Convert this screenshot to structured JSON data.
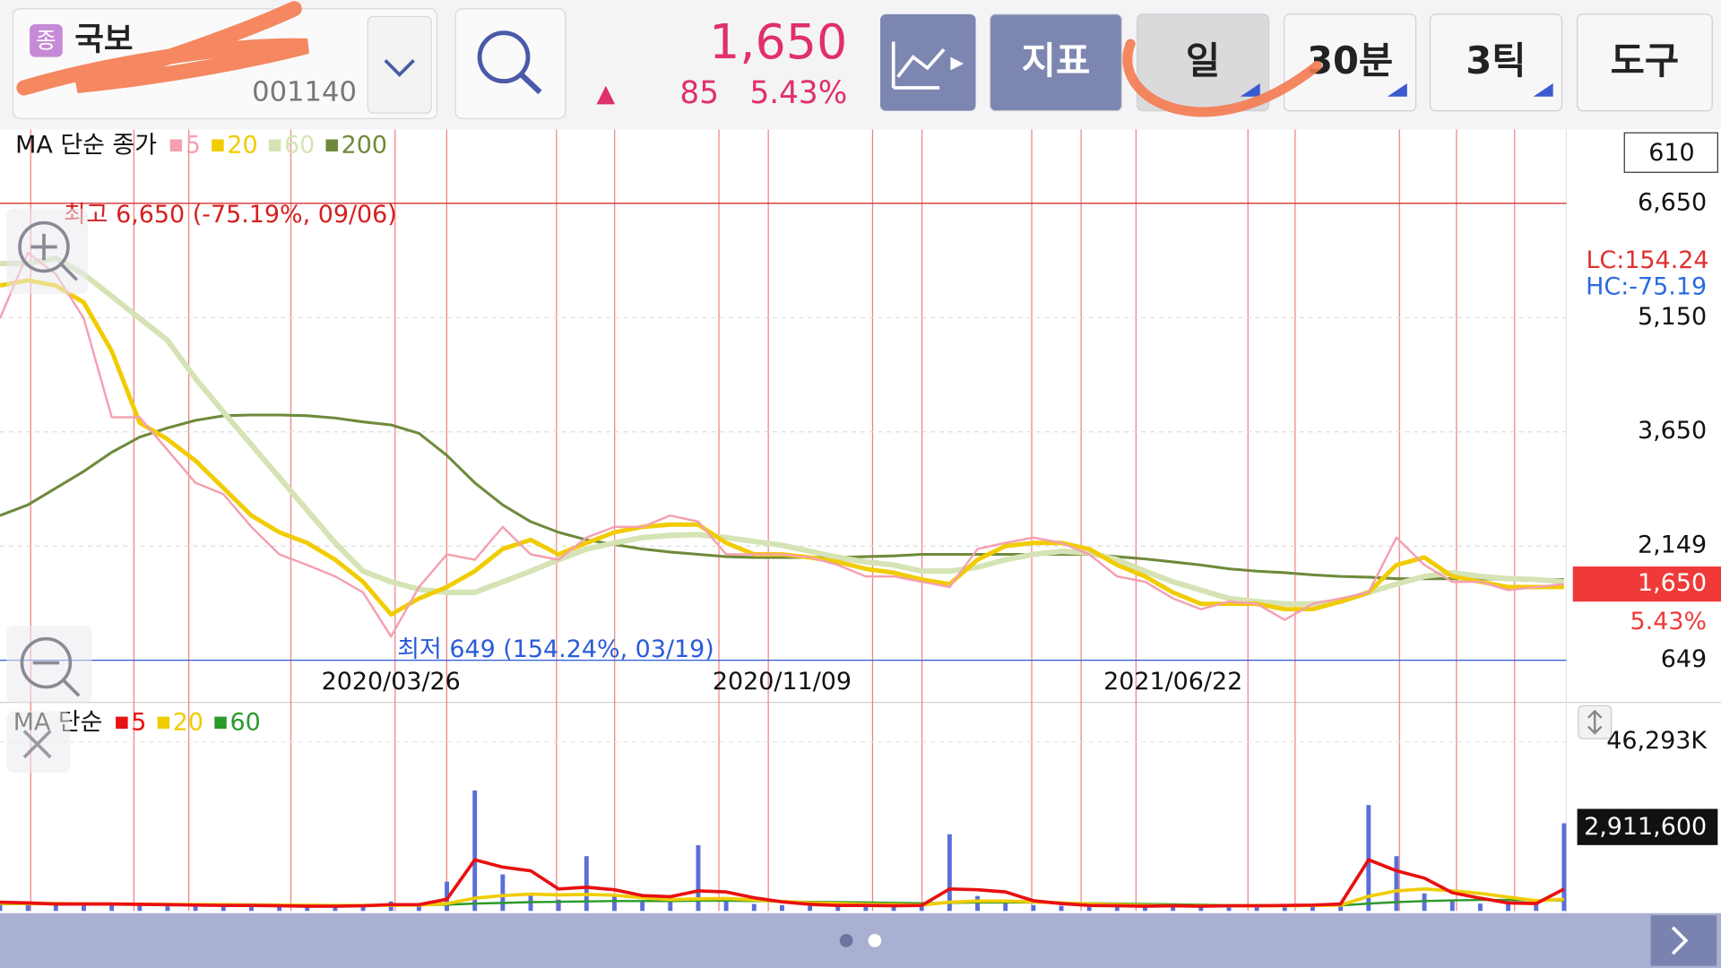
{
  "header": {
    "badge": "종",
    "name": "국보",
    "code": "001140",
    "price": "1,650",
    "change_arrow": "▲",
    "change": "85",
    "change_pct": "5.43%"
  },
  "toolbar": {
    "buttons": [
      "지표",
      "일",
      "30분",
      "3틱",
      "도구"
    ]
  },
  "side_labels": {
    "box": "610",
    "lc": "LC:154.24",
    "hc": "HC:-75.19"
  },
  "chart_data": [
    {
      "type": "line",
      "legend_title": "MA 단순 종가",
      "categories": [
        null,
        null,
        null,
        null,
        null,
        null,
        null,
        null,
        null,
        null,
        null,
        null,
        null,
        null,
        "2020/03/26",
        null,
        null,
        null,
        null,
        null,
        null,
        null,
        null,
        null,
        null,
        null,
        null,
        null,
        "2020/11/09",
        null,
        null,
        null,
        null,
        null,
        null,
        null,
        null,
        null,
        null,
        null,
        null,
        null,
        "2021/06/22",
        null,
        null,
        null,
        null,
        null,
        null,
        null,
        null,
        null,
        null,
        null,
        null,
        null,
        null
      ],
      "series": [
        {
          "name": "5",
          "color": "#f4a0b0",
          "values": [
            5140,
            6000,
            5720,
            5140,
            3840,
            3840,
            3410,
            2980,
            2830,
            2400,
            2040,
            1900,
            1750,
            1540,
            960,
            1610,
            2040,
            1970,
            2400,
            2040,
            1970,
            2260,
            2400,
            2400,
            2550,
            2470,
            2040,
            2040,
            2040,
            2000,
            1900,
            1750,
            1750,
            1680,
            1610,
            2110,
            2190,
            2260,
            2190,
            2040,
            1750,
            1680,
            1460,
            1320,
            1420,
            1390,
            1180,
            1390,
            1460,
            1540,
            2260,
            1900,
            1680,
            1680,
            1570,
            1610,
            1650
          ]
        },
        {
          "name": "20",
          "color": "#f0cc00",
          "values": [
            5570,
            5640,
            5570,
            5350,
            4710,
            3770,
            3550,
            3270,
            2910,
            2550,
            2330,
            2190,
            1970,
            1680,
            1250,
            1460,
            1610,
            1820,
            2110,
            2230,
            2040,
            2190,
            2330,
            2400,
            2430,
            2430,
            2190,
            2040,
            2040,
            2000,
            1940,
            1850,
            1800,
            1710,
            1650,
            1970,
            2150,
            2190,
            2190,
            2110,
            1900,
            1750,
            1540,
            1390,
            1390,
            1390,
            1320,
            1320,
            1420,
            1540,
            1900,
            2000,
            1750,
            1680,
            1610,
            1610,
            1610
          ]
        },
        {
          "name": "60",
          "color": "#d5e3b5",
          "values": [
            5860,
            5860,
            5930,
            5720,
            5430,
            5140,
            4850,
            4350,
            3910,
            3480,
            3050,
            2620,
            2190,
            1820,
            1680,
            1580,
            1540,
            1540,
            1680,
            1820,
            1970,
            2110,
            2190,
            2260,
            2290,
            2300,
            2260,
            2210,
            2160,
            2080,
            2000,
            1940,
            1900,
            1820,
            1820,
            1870,
            1970,
            2040,
            2080,
            2060,
            1970,
            1820,
            1680,
            1570,
            1460,
            1420,
            1390,
            1390,
            1420,
            1540,
            1650,
            1750,
            1800,
            1750,
            1720,
            1710,
            1680
          ]
        },
        {
          "name": "200",
          "color": "#6e8a3a",
          "values": [
            2550,
            2690,
            2910,
            3130,
            3380,
            3580,
            3700,
            3800,
            3860,
            3870,
            3870,
            3860,
            3830,
            3780,
            3740,
            3630,
            3340,
            2980,
            2690,
            2470,
            2330,
            2230,
            2170,
            2110,
            2070,
            2040,
            2010,
            2000,
            2000,
            2000,
            2000,
            2010,
            2020,
            2040,
            2040,
            2040,
            2040,
            2040,
            2040,
            2040,
            2010,
            1980,
            1940,
            1900,
            1850,
            1820,
            1800,
            1770,
            1750,
            1740,
            1720,
            1720,
            1720,
            1720,
            1710,
            1710,
            1710
          ]
        }
      ],
      "ylim": [
        600,
        7620
      ],
      "yticks": [
        {
          "value": 6650,
          "label": "6,650"
        },
        {
          "value": 5150,
          "label": "5,150"
        },
        {
          "value": 3650,
          "label": "3,650"
        },
        {
          "value": 2149,
          "label": "2,149"
        },
        649
      ],
      "annotations": [
        {
          "text": "최고 6,650 (-75.19%, 09/06)",
          "value": 6650,
          "color": "#d42020"
        },
        {
          "text": "최저 649 (154.24%, 03/19)",
          "value": 649,
          "color": "#2a5bd7"
        }
      ],
      "current": {
        "value": 1650,
        "label": "1,650",
        "change": "5.43%",
        "color": "#f03a3a"
      }
    },
    {
      "type": "bar",
      "legend_title": "MA 단순",
      "color": "#5a6fd8",
      "values": [
        2100000,
        1800000,
        1500000,
        2400000,
        1900000,
        1600000,
        1400000,
        1700000,
        1300000,
        1500000,
        1200000,
        1100000,
        1400000,
        1800000,
        2600000,
        1500000,
        8000000,
        33000000,
        10000000,
        4200000,
        3100000,
        15000000,
        4400000,
        2600000,
        3900000,
        18000000,
        3300000,
        1900000,
        1600000,
        1400000,
        1200000,
        1300000,
        1500000,
        1700000,
        21000000,
        4100000,
        2300000,
        1600000,
        1400000,
        1200000,
        1100000,
        1300000,
        1500000,
        1200000,
        1400000,
        1600000,
        1300000,
        1900000,
        2200000,
        29000000,
        15000000,
        4800000,
        2700000,
        2000000,
        1800000,
        2200000,
        24000000
      ],
      "series": [
        {
          "name": "5",
          "color": "#e81010",
          "values": [
            2400000,
            2200000,
            1900000,
            1900000,
            1900000,
            1800000,
            1700000,
            1600000,
            1500000,
            1500000,
            1400000,
            1300000,
            1300000,
            1400000,
            1700000,
            1700000,
            3200000,
            14000000,
            12000000,
            11000000,
            6000000,
            6500000,
            5800000,
            4200000,
            3900000,
            5500000,
            5200000,
            3600000,
            2500000,
            1800000,
            1500000,
            1500000,
            1400000,
            1500000,
            6000000,
            5800000,
            5200000,
            2800000,
            2000000,
            1500000,
            1400000,
            1300000,
            1400000,
            1300000,
            1400000,
            1400000,
            1500000,
            1600000,
            1900000,
            14000000,
            11000000,
            9000000,
            5000000,
            3500000,
            2200000,
            2000000,
            6000000
          ]
        },
        {
          "name": "20",
          "color": "#f0cc00",
          "values": [
            2100000,
            2050000,
            2000000,
            1950000,
            1900000,
            1850000,
            1800000,
            1750000,
            1700000,
            1650000,
            1600000,
            1550000,
            1500000,
            1500000,
            1550000,
            1600000,
            2000000,
            3500000,
            4200000,
            4600000,
            4400000,
            4500000,
            4300000,
            3600000,
            3100000,
            3300000,
            3400000,
            3000000,
            2600000,
            2200000,
            2000000,
            1800000,
            1700000,
            1600000,
            2400000,
            2700000,
            2700000,
            2500000,
            2200000,
            1900000,
            1700000,
            1500000,
            1400000,
            1400000,
            1400000,
            1400000,
            1400000,
            1500000,
            1600000,
            4000000,
            5500000,
            6000000,
            5500000,
            4800000,
            3800000,
            2800000,
            3200000
          ]
        },
        {
          "name": "60",
          "color": "#2a9a2a",
          "values": [
            1900000,
            1900000,
            1850000,
            1850000,
            1800000,
            1800000,
            1750000,
            1750000,
            1700000,
            1700000,
            1650000,
            1650000,
            1600000,
            1600000,
            1600000,
            1600000,
            1700000,
            2000000,
            2200000,
            2400000,
            2500000,
            2600000,
            2700000,
            2700000,
            2700000,
            2800000,
            2800000,
            2700000,
            2600000,
            2500000,
            2400000,
            2300000,
            2200000,
            2100000,
            2200000,
            2300000,
            2300000,
            2300000,
            2200000,
            2100000,
            2000000,
            1900000,
            1800000,
            1700000,
            1600000,
            1600000,
            1500000,
            1500000,
            1500000,
            2000000,
            2400000,
            2700000,
            2900000,
            3000000,
            3000000,
            2900000,
            2900000
          ]
        }
      ],
      "ylim": [
        0,
        55600000
      ],
      "yticks": [
        {
          "value": 46293000,
          "label": "46,293K"
        }
      ],
      "current_label": "2,911,600"
    }
  ]
}
